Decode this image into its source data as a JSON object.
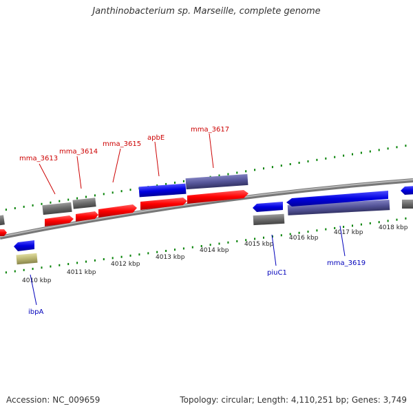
{
  "title": "Janthinobacterium sp. Marseille, complete genome",
  "footer": {
    "accession": "Accession: NC_009659",
    "summary": "Topology: circular; Length: 4,110,251 bp; Genes: 3,749"
  },
  "colors": {
    "forward_cds": "#ff0000",
    "reverse_cds": "#0000e0",
    "gene_feature": "#666666",
    "reverse_gene_feature": "#555599",
    "rna_feature": "#b8b470",
    "backbone": "#999999",
    "ticks": "#008000",
    "forward_label": "#cc0000",
    "reverse_label": "#0000bb"
  },
  "ruler": {
    "unit": "kbp",
    "labels": [
      "4010 kbp",
      "4011 kbp",
      "4012 kbp",
      "4013 kbp",
      "4014 kbp",
      "4015 kbp",
      "4016 kbp",
      "4017 kbp",
      "4018 kbp"
    ]
  },
  "gene_labels": {
    "forward": [
      "mma_3613",
      "mma_3614",
      "mma_3615",
      "apbE",
      "mma_3617"
    ],
    "reverse": [
      "ibpA",
      "piuC1",
      "mma_3619"
    ]
  }
}
